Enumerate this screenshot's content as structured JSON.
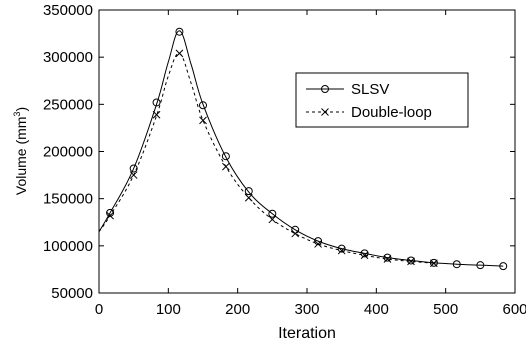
{
  "chart_data": {
    "type": "line",
    "title": "",
    "xlabel": "Iteration",
    "ylabel": "Volume (mm",
    "ylabel_sup": "3",
    "ylabel_close": ")",
    "xlim": [
      0,
      600
    ],
    "ylim": [
      50000,
      350000
    ],
    "x_ticks": [
      0,
      100,
      200,
      300,
      400,
      500,
      600
    ],
    "x_tick_labels": [
      "0",
      "100",
      "200",
      "300",
      "400",
      "500",
      "600"
    ],
    "y_ticks": [
      50000,
      100000,
      150000,
      200000,
      250000,
      300000,
      350000
    ],
    "y_tick_labels": [
      "50000",
      "100000",
      "150000",
      "200000",
      "250000",
      "300000",
      "350000"
    ],
    "grid": false,
    "legend_position": "top-right",
    "series": [
      {
        "name": "SLSV",
        "line_style": "solid",
        "marker": "circle",
        "color": "#000000",
        "curve_x": [
          0,
          16,
          50,
          83,
          100,
          116,
          133,
          150,
          183,
          216,
          250,
          283,
          316,
          350,
          383,
          416,
          450,
          483,
          516,
          550,
          583
        ],
        "curve_y": [
          115000,
          135000,
          182000,
          250000,
          295000,
          328000,
          292000,
          250000,
          194000,
          157000,
          134000,
          117000,
          105000,
          97000,
          92000,
          87500,
          84500,
          82000,
          80500,
          79500,
          78500
        ],
        "markers_x": [
          16,
          50,
          83,
          116,
          150,
          183,
          216,
          250,
          283,
          316,
          350,
          383,
          416,
          450,
          483,
          516,
          550,
          583
        ],
        "markers_y": [
          135000,
          182000,
          252000,
          327000,
          249000,
          195000,
          158000,
          134000,
          117000,
          105000,
          97000,
          92000,
          87500,
          84500,
          82000,
          80500,
          79500,
          78500
        ]
      },
      {
        "name": "Double-loop",
        "line_style": "dashed",
        "marker": "x",
        "color": "#000000",
        "curve_x": [
          0,
          16,
          50,
          83,
          100,
          116,
          133,
          150,
          183,
          216,
          250,
          283,
          316,
          350,
          383,
          416,
          450,
          483
        ],
        "curve_y": [
          115000,
          132000,
          175000,
          238000,
          280000,
          304000,
          272000,
          233000,
          184000,
          151000,
          128000,
          113000,
          102000,
          95000,
          90000,
          86000,
          83500,
          81500
        ],
        "markers_x": [
          16,
          50,
          83,
          116,
          150,
          183,
          216,
          250,
          283,
          316,
          350,
          383,
          416,
          450,
          483
        ],
        "markers_y": [
          132000,
          175000,
          239000,
          304000,
          233000,
          184000,
          151000,
          128000,
          113000,
          102000,
          95000,
          90000,
          86000,
          83500,
          81500
        ]
      }
    ]
  }
}
